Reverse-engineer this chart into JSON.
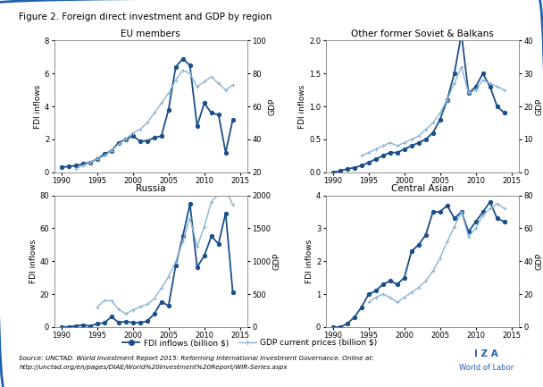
{
  "title": "Figure 2. Foreign direct investment and GDP by region",
  "source_line1": "Source: UNCTAD. World Investment Report 2015: Reforming International Investment Governance. Online at:",
  "source_line2": "http://unctad.org/en/pages/DIAE/World%20Investment%20Report/WIR-Series.aspx",
  "legend_fdi": "FDI inflows (billion $)",
  "legend_gdp": "GDP current prices (billion $)",
  "panels": [
    {
      "title": "EU members",
      "ylabel_left": "FDI inflows",
      "ylabel_right": "GDP",
      "ylim_left": [
        0,
        8
      ],
      "ylim_right": [
        20,
        100
      ],
      "yticks_left": [
        0,
        2,
        4,
        6,
        8
      ],
      "yticks_right": [
        20,
        40,
        60,
        80,
        100
      ],
      "years": [
        1990,
        1991,
        1992,
        1993,
        1994,
        1995,
        1996,
        1997,
        1998,
        1999,
        2000,
        2001,
        2002,
        2003,
        2004,
        2005,
        2006,
        2007,
        2008,
        2009,
        2010,
        2011,
        2012,
        2013,
        2014
      ],
      "fdi": [
        0.3,
        0.35,
        0.4,
        0.5,
        0.6,
        0.8,
        1.1,
        1.3,
        1.8,
        2.0,
        2.2,
        1.9,
        1.9,
        2.1,
        2.2,
        3.8,
        6.4,
        6.9,
        6.5,
        2.8,
        4.2,
        3.6,
        3.5,
        1.2,
        3.2
      ],
      "gdp": [
        null,
        null,
        22,
        24,
        26,
        28,
        30,
        33,
        37,
        40,
        44,
        46,
        50,
        56,
        62,
        68,
        76,
        82,
        80,
        72,
        75,
        78,
        74,
        70,
        73
      ]
    },
    {
      "title": "Other former Soviet & Balkans",
      "ylabel_left": "FDI inflows",
      "ylabel_right": "GDP",
      "ylim_left": [
        0,
        2
      ],
      "ylim_right": [
        0,
        40
      ],
      "yticks_left": [
        0,
        0.5,
        1.0,
        1.5,
        2.0
      ],
      "yticks_right": [
        0,
        10,
        20,
        30,
        40
      ],
      "years": [
        1990,
        1991,
        1992,
        1993,
        1994,
        1995,
        1996,
        1997,
        1998,
        1999,
        2000,
        2001,
        2002,
        2003,
        2004,
        2005,
        2006,
        2007,
        2008,
        2009,
        2010,
        2011,
        2012,
        2013,
        2014
      ],
      "fdi": [
        0.0,
        0.02,
        0.05,
        0.07,
        0.1,
        0.15,
        0.2,
        0.25,
        0.3,
        0.3,
        0.35,
        0.4,
        0.45,
        0.5,
        0.6,
        0.8,
        1.1,
        1.5,
        2.1,
        1.2,
        1.3,
        1.5,
        1.3,
        1.0,
        0.9
      ],
      "gdp": [
        null,
        null,
        null,
        null,
        5,
        6,
        7,
        8,
        9,
        8,
        9,
        10,
        11,
        13,
        15,
        18,
        22,
        27,
        32,
        24,
        25,
        28,
        27,
        26,
        25
      ]
    },
    {
      "title": "Russia",
      "ylabel_left": "FDI inflows",
      "ylabel_right": "GDP",
      "ylim_left": [
        0,
        80
      ],
      "ylim_right": [
        0,
        2000
      ],
      "yticks_left": [
        0,
        20,
        40,
        60,
        80
      ],
      "yticks_right": [
        0,
        500,
        1000,
        1500,
        2000
      ],
      "years": [
        1990,
        1991,
        1992,
        1993,
        1994,
        1995,
        1996,
        1997,
        1998,
        1999,
        2000,
        2001,
        2002,
        2003,
        2004,
        2005,
        2006,
        2007,
        2008,
        2009,
        2010,
        2011,
        2012,
        2013,
        2014
      ],
      "fdi": [
        0.0,
        0.1,
        0.7,
        1.2,
        0.6,
        2.0,
        2.5,
        6.2,
        2.8,
        3.3,
        2.7,
        2.7,
        3.5,
        8.0,
        15.4,
        12.9,
        37.4,
        55.1,
        74.8,
        36.5,
        43.2,
        55.1,
        50.6,
        69.2,
        20.9
      ],
      "gdp": [
        null,
        null,
        null,
        null,
        null,
        300,
        400,
        400,
        270,
        200,
        260,
        307,
        345,
        431,
        592,
        764,
        990,
        1300,
        1660,
        1220,
        1525,
        1905,
        2015,
        2097,
        1857
      ]
    },
    {
      "title": "Central Asian",
      "ylabel_left": "FDI inflows",
      "ylabel_right": "GDP",
      "ylim_left": [
        0,
        4
      ],
      "ylim_right": [
        0,
        80
      ],
      "yticks_left": [
        0,
        1,
        2,
        3,
        4
      ],
      "yticks_right": [
        0,
        20,
        40,
        60,
        80
      ],
      "years": [
        1990,
        1991,
        1992,
        1993,
        1994,
        1995,
        1996,
        1997,
        1998,
        1999,
        2000,
        2001,
        2002,
        2003,
        2004,
        2005,
        2006,
        2007,
        2008,
        2009,
        2010,
        2011,
        2012,
        2013,
        2014
      ],
      "fdi": [
        0.0,
        0.0,
        0.1,
        0.3,
        0.6,
        1.0,
        1.1,
        1.3,
        1.4,
        1.3,
        1.5,
        2.3,
        2.5,
        2.8,
        3.5,
        3.5,
        3.7,
        3.3,
        3.5,
        2.9,
        3.2,
        3.5,
        3.8,
        3.3,
        3.2
      ],
      "gdp": [
        null,
        null,
        null,
        null,
        null,
        15,
        18,
        20,
        18,
        15,
        18,
        21,
        24,
        28,
        34,
        42,
        52,
        61,
        70,
        55,
        60,
        68,
        72,
        75,
        72
      ]
    }
  ],
  "fdi_color": "#1a4f8a",
  "gdp_color": "#8ab4d4",
  "bg_color": "#ffffff",
  "border_color": "#2060b0",
  "iza_color": "#2060b0"
}
